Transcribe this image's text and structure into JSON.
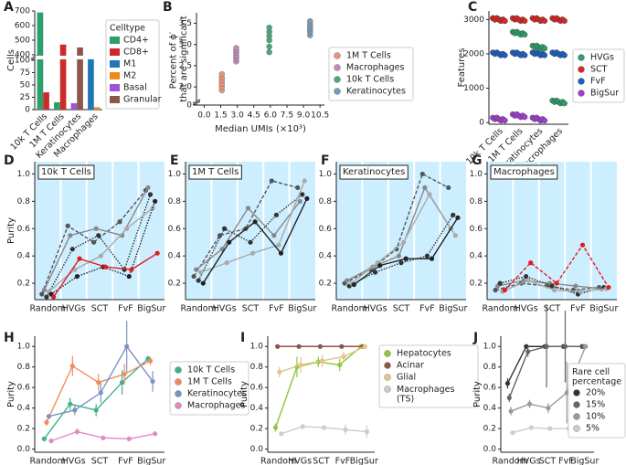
{
  "chart_data": [
    {
      "type": "bar",
      "panel": "A",
      "ylabel": "Cells",
      "legend_title": "Celltype",
      "categories": [
        "10k T Cells",
        "1M T Cells",
        "Keratinocytes",
        "Macrophages"
      ],
      "series": [
        {
          "name": "CD4+",
          "color": "#2e9e6a",
          "values": [
            690,
            15,
            null,
            null
          ]
        },
        {
          "name": "CD8+",
          "color": "#cc2b2b",
          "values": [
            35,
            470,
            null,
            null
          ]
        },
        {
          "name": "M1",
          "color": "#1f77b4",
          "values": [
            null,
            null,
            null,
            105
          ]
        },
        {
          "name": "M2",
          "color": "#f0891a",
          "values": [
            null,
            null,
            null,
            5
          ]
        },
        {
          "name": "Basal",
          "color": "#9e54d9",
          "values": [
            null,
            null,
            13,
            null
          ]
        },
        {
          "name": "Granular",
          "color": "#8c564b",
          "values": [
            null,
            null,
            450,
            null
          ]
        }
      ],
      "ylim": [
        0,
        700
      ],
      "ybreak": [
        100,
        400
      ],
      "yticks": [
        0,
        25,
        50,
        75,
        100,
        400,
        500,
        600,
        700
      ],
      "xtick_rotation": 45
    },
    {
      "type": "scatter",
      "panel": "B",
      "ylabel": "Percent of ϕ′ that are significant",
      "xlabel": "Median UMIs (×10³)",
      "series": [
        {
          "name": "1M T Cells",
          "color": "#e8967a",
          "x": [
            1.6,
            1.6,
            1.6,
            1.6,
            1.6,
            1.6
          ],
          "values": [
            1.92,
            2.0,
            2.08,
            2.15,
            2.22,
            2.3
          ]
        },
        {
          "name": "Macrophages",
          "color": "#c28ab8",
          "x": [
            2.9,
            2.9,
            2.9,
            2.9,
            2.9,
            2.9
          ],
          "values": [
            2.6,
            2.67,
            2.73,
            2.8,
            2.86,
            2.92
          ]
        },
        {
          "name": "10k T Cells",
          "color": "#4aa87a",
          "x": [
            5.9,
            5.9,
            5.9,
            5.9,
            5.9,
            5.9
          ],
          "values": [
            2.82,
            2.95,
            3.1,
            3.2,
            3.3,
            3.4
          ]
        },
        {
          "name": "Keratinocytes",
          "color": "#7a9ab8",
          "x": [
            9.6,
            9.6,
            9.6,
            9.6,
            9.6,
            9.6
          ],
          "values": [
            3.22,
            3.3,
            3.36,
            3.42,
            3.48,
            3.55
          ]
        }
      ],
      "xlim": [
        -0.7,
        10.9
      ],
      "xticks": [
        {
          "value": 0,
          "label": "0.0"
        },
        1.5,
        {
          "value": 3,
          "label": "3.0"
        },
        4.5,
        {
          "value": 6,
          "label": "6.0"
        },
        7.5,
        {
          "value": 9,
          "label": "9.0"
        },
        10.5
      ],
      "ylim": [
        0,
        3.75
      ],
      "ybreak": [
        0,
        1.7
      ],
      "yticks": [
        0,
        {
          "value": 2,
          "label": "2.0"
        },
        2.5,
        {
          "value": 3,
          "label": "3.0"
        },
        3.5
      ]
    },
    {
      "type": "strip",
      "panel": "C",
      "ylabel": "Features",
      "categories": [
        "10k T Cells",
        "1M T Cells",
        "Keratinocytes",
        "Macrophages"
      ],
      "series": [
        {
          "name": "HVGs",
          "color": "#2e9e6a",
          "values": [
            3000,
            2600,
            2200,
            600
          ]
        },
        {
          "name": "SCT",
          "color": "#d62728",
          "values": [
            3000,
            3000,
            3000,
            3000
          ]
        },
        {
          "name": "FvF",
          "color": "#1f5fbf",
          "values": [
            2000,
            2000,
            2000,
            2000
          ]
        },
        {
          "name": "BigSur",
          "color": "#a040d0",
          "values": [
            100,
            200,
            100,
            null
          ]
        }
      ],
      "ylim": [
        -50,
        3250
      ],
      "yticks": [
        0,
        1000,
        2000,
        3000
      ],
      "xtick_rotation": 45
    },
    {
      "type": "line",
      "panel": "D",
      "title": "10k T Cells",
      "ylabel": "Purity",
      "background": "#cdeeff",
      "categories": [
        "Random",
        "HVGs",
        "SCT",
        "FvF",
        "BigSur"
      ],
      "series": [
        {
          "color": "#555555",
          "dash": "dashed",
          "values": [
            0.12,
            0.62,
            0.5,
            0.65,
            0.88
          ]
        },
        {
          "color": "#888888",
          "values": [
            0.15,
            0.55,
            0.6,
            0.55,
            0.9
          ]
        },
        {
          "color": "#333333",
          "dash": "dotted",
          "values": [
            0.1,
            0.45,
            0.55,
            0.3,
            0.85
          ]
        },
        {
          "color": "#aaaaaa",
          "values": [
            0.14,
            0.3,
            0.4,
            0.6,
            0.75
          ]
        },
        {
          "color": "#222222",
          "dash": "dotted",
          "values": [
            0.12,
            0.25,
            0.32,
            0.25,
            0.8
          ]
        },
        {
          "color": "#e41a1c",
          "values": [
            0.1,
            0.38,
            0.32,
            0.3,
            0.42
          ]
        }
      ],
      "ylim": [
        0.08,
        1.09
      ],
      "yticks": [
        0.2,
        0.4,
        0.6,
        0.8,
        {
          "value": 1,
          "label": "1.0"
        }
      ]
    },
    {
      "type": "line",
      "panel": "E",
      "title": "1M T Cells",
      "background": "#cdeeff",
      "categories": [
        "Random",
        "HVGs",
        "SCT",
        "FvF",
        "BigSur"
      ],
      "series": [
        {
          "color": "#555555",
          "dash": "dashed",
          "values": [
            0.25,
            0.55,
            0.6,
            0.95,
            0.9
          ]
        },
        {
          "color": "#888888",
          "values": [
            0.3,
            0.45,
            0.75,
            0.55,
            0.8
          ]
        },
        {
          "color": "#333333",
          "dash": "dotted",
          "values": [
            0.22,
            0.6,
            0.5,
            0.7,
            0.85
          ]
        },
        {
          "color": "#aaaaaa",
          "values": [
            0.28,
            0.35,
            0.42,
            0.48,
            0.95
          ]
        },
        {
          "color": "#222222",
          "values": [
            0.2,
            0.5,
            0.65,
            0.42,
            0.82
          ]
        }
      ],
      "ylim": [
        0.08,
        1.09
      ],
      "yticks": [
        0.2,
        0.4,
        0.6,
        0.8,
        {
          "value": 1,
          "label": "1.0"
        }
      ]
    },
    {
      "type": "line",
      "panel": "F",
      "title": "Keratinocytes",
      "background": "#cdeeff",
      "categories": [
        "Random",
        "HVGs",
        "SCT",
        "FvF",
        "BigSur"
      ],
      "series": [
        {
          "color": "#555555",
          "dash": "dashed",
          "values": [
            0.2,
            0.3,
            0.45,
            1.0,
            0.9
          ]
        },
        {
          "color": "#888888",
          "values": [
            0.22,
            0.32,
            0.4,
            0.9,
            0.6
          ]
        },
        {
          "color": "#333333",
          "dash": "dotted",
          "values": [
            0.18,
            0.28,
            0.35,
            0.4,
            0.7
          ]
        },
        {
          "color": "#aaaaaa",
          "values": [
            0.2,
            0.35,
            0.5,
            0.85,
            0.55
          ]
        },
        {
          "color": "#222222",
          "values": [
            0.19,
            0.33,
            0.38,
            0.38,
            0.68
          ]
        }
      ],
      "ylim": [
        0.08,
        1.09
      ],
      "yticks": [
        0.2,
        0.4,
        0.6,
        0.8,
        {
          "value": 1,
          "label": "1.0"
        }
      ]
    },
    {
      "type": "line",
      "panel": "G",
      "title": "Macrophages",
      "background": "#cdeeff",
      "categories": [
        "Random",
        "HVGs",
        "SCT",
        "FvF",
        "BigSur"
      ],
      "series": [
        {
          "color": "#555555",
          "dash": "dashed",
          "values": [
            0.15,
            0.2,
            0.18,
            0.15,
            0.17
          ]
        },
        {
          "color": "#888888",
          "values": [
            0.18,
            0.22,
            0.2,
            0.18,
            0.16
          ]
        },
        {
          "color": "#333333",
          "dash": "dotted",
          "values": [
            0.2,
            0.25,
            0.18,
            0.12,
            0.17
          ]
        },
        {
          "color": "#aaaaaa",
          "values": [
            0.14,
            0.22,
            0.15,
            0.14,
            0.16
          ]
        },
        {
          "color": "#e41a1c",
          "dash": "dashed",
          "values": [
            0.15,
            0.35,
            0.2,
            0.48,
            0.17
          ]
        }
      ],
      "ylim": [
        0.08,
        1.09
      ],
      "yticks": [
        0.2,
        0.4,
        0.6,
        0.8,
        {
          "value": 1,
          "label": "1.0"
        }
      ]
    },
    {
      "type": "line",
      "panel": "H",
      "ylabel": "Purity",
      "categories": [
        "Random",
        "HVGs",
        "SCT",
        "FvF",
        "BigSur"
      ],
      "series": [
        {
          "name": "10k T Cells",
          "color": "#3cb38a",
          "values": [
            0.1,
            0.44,
            0.38,
            0.65,
            0.88
          ],
          "errors": [
            0.02,
            0.06,
            0.06,
            0.12,
            0.03
          ]
        },
        {
          "name": "1M T Cells",
          "color": "#f28c5a",
          "values": [
            0.26,
            0.81,
            0.65,
            0.73,
            0.86
          ],
          "errors": [
            0.03,
            0.1,
            0.08,
            0.1,
            0.04
          ]
        },
        {
          "name": "Keratinocytes",
          "color": "#7a92c4",
          "values": [
            0.32,
            0.38,
            0.55,
            1.0,
            0.66
          ],
          "errors": [
            0.02,
            0.05,
            0.1,
            0.25,
            0.1
          ]
        },
        {
          "name": "Macrophages",
          "color": "#e58ac9",
          "values": [
            0.08,
            0.17,
            0.11,
            0.1,
            0.15
          ],
          "errors": [
            0.01,
            0.03,
            0.02,
            0.02,
            0.02
          ]
        }
      ],
      "ylim": [
        -0.03,
        1.1
      ],
      "yticks": [
        {
          "value": 0,
          "label": "0.0"
        },
        0.2,
        0.4,
        0.6,
        0.8,
        {
          "value": 1,
          "label": "1.0"
        }
      ]
    },
    {
      "type": "line",
      "panel": "I",
      "ylabel": "Purity",
      "categories": [
        "Random",
        "HVGs",
        "SCT",
        "FvF",
        "BigSur"
      ],
      "series": [
        {
          "name": "Hepatocytes",
          "color": "#8cc63f",
          "values": [
            0.21,
            0.8,
            0.85,
            0.82,
            1.0
          ],
          "errors": [
            0.04,
            0.1,
            0.05,
            0.06,
            0.02
          ]
        },
        {
          "name": "Acinar",
          "color": "#8c564b",
          "values": [
            1,
            1,
            1,
            1,
            1
          ]
        },
        {
          "name": "Glial",
          "color": "#e5c38a",
          "values": [
            0.75,
            0.82,
            0.86,
            0.9,
            1.0
          ],
          "errors": [
            0.05,
            0.08,
            0.06,
            0.05,
            0.01
          ]
        },
        {
          "name": "Macrophages (TS)",
          "color": "#cccccc",
          "values": [
            0.15,
            0.22,
            0.21,
            0.19,
            0.17
          ],
          "errors": [
            0.01,
            0.02,
            0.02,
            0.05,
            0.06
          ]
        }
      ],
      "ylim": [
        -0.03,
        1.1
      ],
      "yticks": [
        {
          "value": 0,
          "label": "0.0"
        },
        0.2,
        0.4,
        0.6,
        0.8,
        {
          "value": 1,
          "label": "1.0"
        }
      ]
    },
    {
      "type": "line",
      "panel": "J",
      "ylabel": "Purity",
      "legend_title": "Rare cell percentage",
      "categories": [
        "Random",
        "HVGs",
        "SCT",
        "FvF",
        "BigSur"
      ],
      "series": [
        {
          "name": "20%",
          "color": "#333333",
          "values": [
            0.64,
            1,
            1,
            1,
            1
          ],
          "errors": [
            0.05,
            0,
            0,
            0,
            0
          ]
        },
        {
          "name": "15%",
          "color": "#666666",
          "values": [
            0.5,
            0.95,
            1,
            1,
            1
          ],
          "errors": [
            0.04,
            0.05,
            0.4,
            0.35,
            0
          ]
        },
        {
          "name": "10%",
          "color": "#999999",
          "values": [
            0.37,
            0.44,
            0.4,
            0.55,
            1.0
          ],
          "errors": [
            0.04,
            0.04,
            0.05,
            0.3,
            0.02
          ]
        },
        {
          "name": "5%",
          "color": "#cccccc",
          "values": [
            0.16,
            0.21,
            0.2,
            0.2,
            0.15
          ],
          "errors": [
            0.02,
            0.02,
            0.02,
            0.03,
            0.03
          ]
        }
      ],
      "ylim": [
        -0.03,
        1.1
      ],
      "yticks": [
        {
          "value": 0,
          "label": "0.0"
        },
        0.2,
        0.4,
        0.6,
        0.8,
        {
          "value": 1,
          "label": "1.0"
        }
      ]
    }
  ]
}
